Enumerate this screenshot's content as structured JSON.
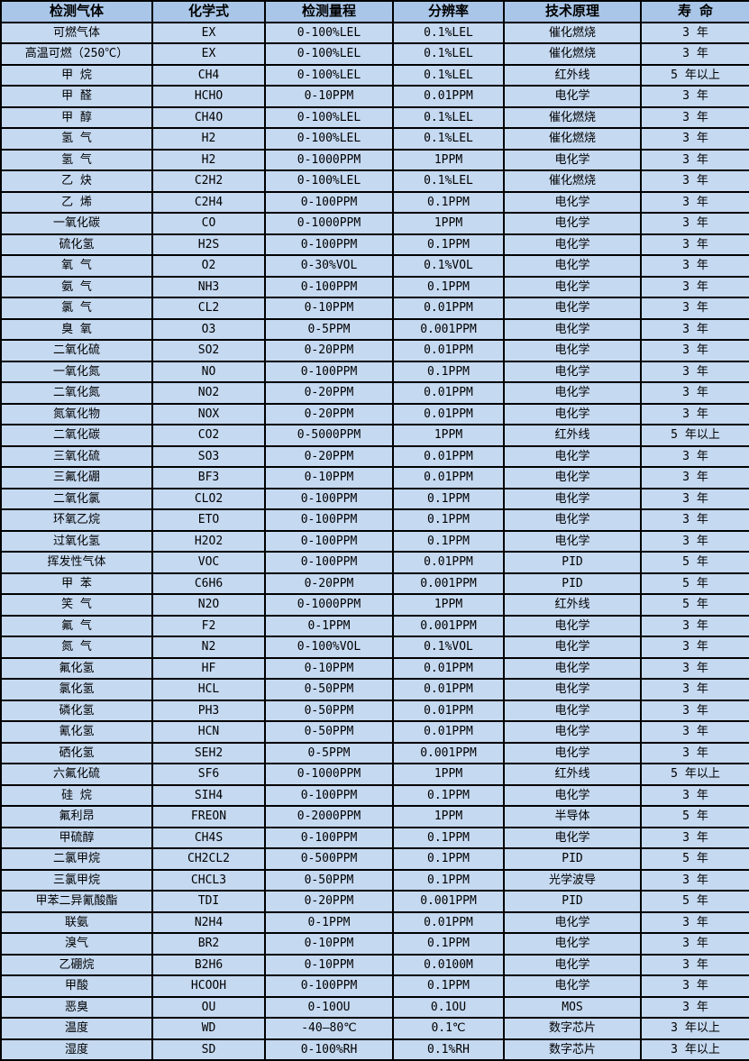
{
  "table": {
    "title": "gas-detector-specification-table",
    "colors": {
      "header_bg": "#a9c6e8",
      "row_bg": "#c5d9f1",
      "border": "#000000",
      "text": "#000000"
    },
    "columns": [
      "检测气体",
      "化学式",
      "检测量程",
      "分辨率",
      "技术原理",
      "寿 命"
    ],
    "rows": [
      [
        "可燃气体",
        "EX",
        "0-100%LEL",
        "0.1%LEL",
        "催化燃烧",
        "3 年"
      ],
      [
        "高温可燃（250℃）",
        "EX",
        "0-100%LEL",
        "0.1%LEL",
        "催化燃烧",
        "3 年"
      ],
      [
        "甲 烷",
        "CH4",
        "0-100%LEL",
        "0.1%LEL",
        "红外线",
        "5 年以上"
      ],
      [
        "甲 醛",
        "HCHO",
        "0-10PPM",
        "0.01PPM",
        "电化学",
        "3 年"
      ],
      [
        "甲 醇",
        "CH4O",
        "0-100%LEL",
        "0.1%LEL",
        "催化燃烧",
        "3 年"
      ],
      [
        "氢 气",
        "H2",
        "0-100%LEL",
        "0.1%LEL",
        "催化燃烧",
        "3 年"
      ],
      [
        "氢 气",
        "H2",
        "0-1000PPM",
        "1PPM",
        "电化学",
        "3 年"
      ],
      [
        "乙 炔",
        "C2H2",
        "0-100%LEL",
        "0.1%LEL",
        "催化燃烧",
        "3 年"
      ],
      [
        "乙 烯",
        "C2H4",
        "0-100PPM",
        "0.1PPM",
        "电化学",
        "3 年"
      ],
      [
        "一氧化碳",
        "CO",
        "0-1000PPM",
        "1PPM",
        "电化学",
        "3 年"
      ],
      [
        "硫化氢",
        "H2S",
        "0-100PPM",
        "0.1PPM",
        "电化学",
        "3 年"
      ],
      [
        "氧 气",
        "O2",
        "0-30%VOL",
        "0.1%VOL",
        "电化学",
        "3 年"
      ],
      [
        "氨 气",
        "NH3",
        "0-100PPM",
        "0.1PPM",
        "电化学",
        "3 年"
      ],
      [
        "氯 气",
        "CL2",
        "0-10PPM",
        "0.01PPM",
        "电化学",
        "3 年"
      ],
      [
        "臭 氧",
        "O3",
        "0-5PPM",
        "0.001PPM",
        "电化学",
        "3 年"
      ],
      [
        "二氧化硫",
        "SO2",
        "0-20PPM",
        "0.01PPM",
        "电化学",
        "3 年"
      ],
      [
        "一氧化氮",
        "NO",
        "0-100PPM",
        "0.1PPM",
        "电化学",
        "3 年"
      ],
      [
        "二氧化氮",
        "NO2",
        "0-20PPM",
        "0.01PPM",
        "电化学",
        "3 年"
      ],
      [
        "氮氧化物",
        "NOX",
        "0-20PPM",
        "0.01PPM",
        "电化学",
        "3 年"
      ],
      [
        "二氧化碳",
        "CO2",
        "0-5000PPM",
        "1PPM",
        "红外线",
        "5 年以上"
      ],
      [
        "三氧化硫",
        "SO3",
        "0-20PPM",
        "0.01PPM",
        "电化学",
        "3 年"
      ],
      [
        "三氟化硼",
        "BF3",
        "0-10PPM",
        "0.01PPM",
        "电化学",
        "3 年"
      ],
      [
        "二氧化氯",
        "CLO2",
        "0-100PPM",
        "0.1PPM",
        "电化学",
        "3 年"
      ],
      [
        "环氧乙烷",
        "ETO",
        "0-100PPM",
        "0.1PPM",
        "电化学",
        "3 年"
      ],
      [
        "过氧化氢",
        "H2O2",
        "0-100PPM",
        "0.1PPM",
        "电化学",
        "3 年"
      ],
      [
        "挥发性气体",
        "VOC",
        "0-100PPM",
        "0.01PPM",
        "PID",
        "5 年"
      ],
      [
        "甲 苯",
        "C6H6",
        "0-20PPM",
        "0.001PPM",
        "PID",
        "5 年"
      ],
      [
        "笑 气",
        "N2O",
        "0-1000PPM",
        "1PPM",
        "红外线",
        "5 年"
      ],
      [
        "氟 气",
        "F2",
        "0-1PPM",
        "0.001PPM",
        "电化学",
        "3 年"
      ],
      [
        "氮 气",
        "N2",
        "0-100%VOL",
        "0.1%VOL",
        "电化学",
        "3 年"
      ],
      [
        "氟化氢",
        "HF",
        "0-10PPM",
        "0.01PPM",
        "电化学",
        "3 年"
      ],
      [
        "氯化氢",
        "HCL",
        "0-50PPM",
        "0.01PPM",
        "电化学",
        "3 年"
      ],
      [
        "磷化氢",
        "PH3",
        "0-50PPM",
        "0.01PPM",
        "电化学",
        "3 年"
      ],
      [
        "氰化氢",
        "HCN",
        "0-50PPM",
        "0.01PPM",
        "电化学",
        "3 年"
      ],
      [
        "硒化氢",
        "SEH2",
        "0-5PPM",
        "0.001PPM",
        "电化学",
        "3 年"
      ],
      [
        "六氟化硫",
        "SF6",
        "0-1000PPM",
        "1PPM",
        "红外线",
        "5 年以上"
      ],
      [
        "硅 烷",
        "SIH4",
        "0-100PPM",
        "0.1PPM",
        "电化学",
        "3 年"
      ],
      [
        "氟利昂",
        "FREON",
        "0-2000PPM",
        "1PPM",
        "半导体",
        "5 年"
      ],
      [
        "甲硫醇",
        "CH4S",
        "0-100PPM",
        "0.1PPM",
        "电化学",
        "3 年"
      ],
      [
        "二氯甲烷",
        "CH2CL2",
        "0-500PPM",
        "0.1PPM",
        "PID",
        "5 年"
      ],
      [
        "三氯甲烷",
        "CHCL3",
        "0-50PPM",
        "0.1PPM",
        "光学波导",
        "3 年"
      ],
      [
        "甲苯二异氰酸酯",
        "TDI",
        "0-20PPM",
        "0.001PPM",
        "PID",
        "5 年"
      ],
      [
        "联氨",
        "N2H4",
        "0-1PPM",
        "0.01PPM",
        "电化学",
        "3 年"
      ],
      [
        "溴气",
        "BR2",
        "0-10PPM",
        "0.1PPM",
        "电化学",
        "3 年"
      ],
      [
        "乙硼烷",
        "B2H6",
        "0-10PPM",
        "0.0100M",
        "电化学",
        "3 年"
      ],
      [
        "甲酸",
        "HCOOH",
        "0-100PPM",
        "0.1PPM",
        "电化学",
        "3 年"
      ],
      [
        "恶臭",
        "OU",
        "0-10OU",
        "0.1OU",
        "MOS",
        "3 年"
      ],
      [
        "温度",
        "WD",
        "-40—80℃",
        "0.1℃",
        "数字芯片",
        "3 年以上"
      ],
      [
        "湿度",
        "SD",
        "0-100%RH",
        "0.1%RH",
        "数字芯片",
        "3 年以上"
      ]
    ]
  }
}
